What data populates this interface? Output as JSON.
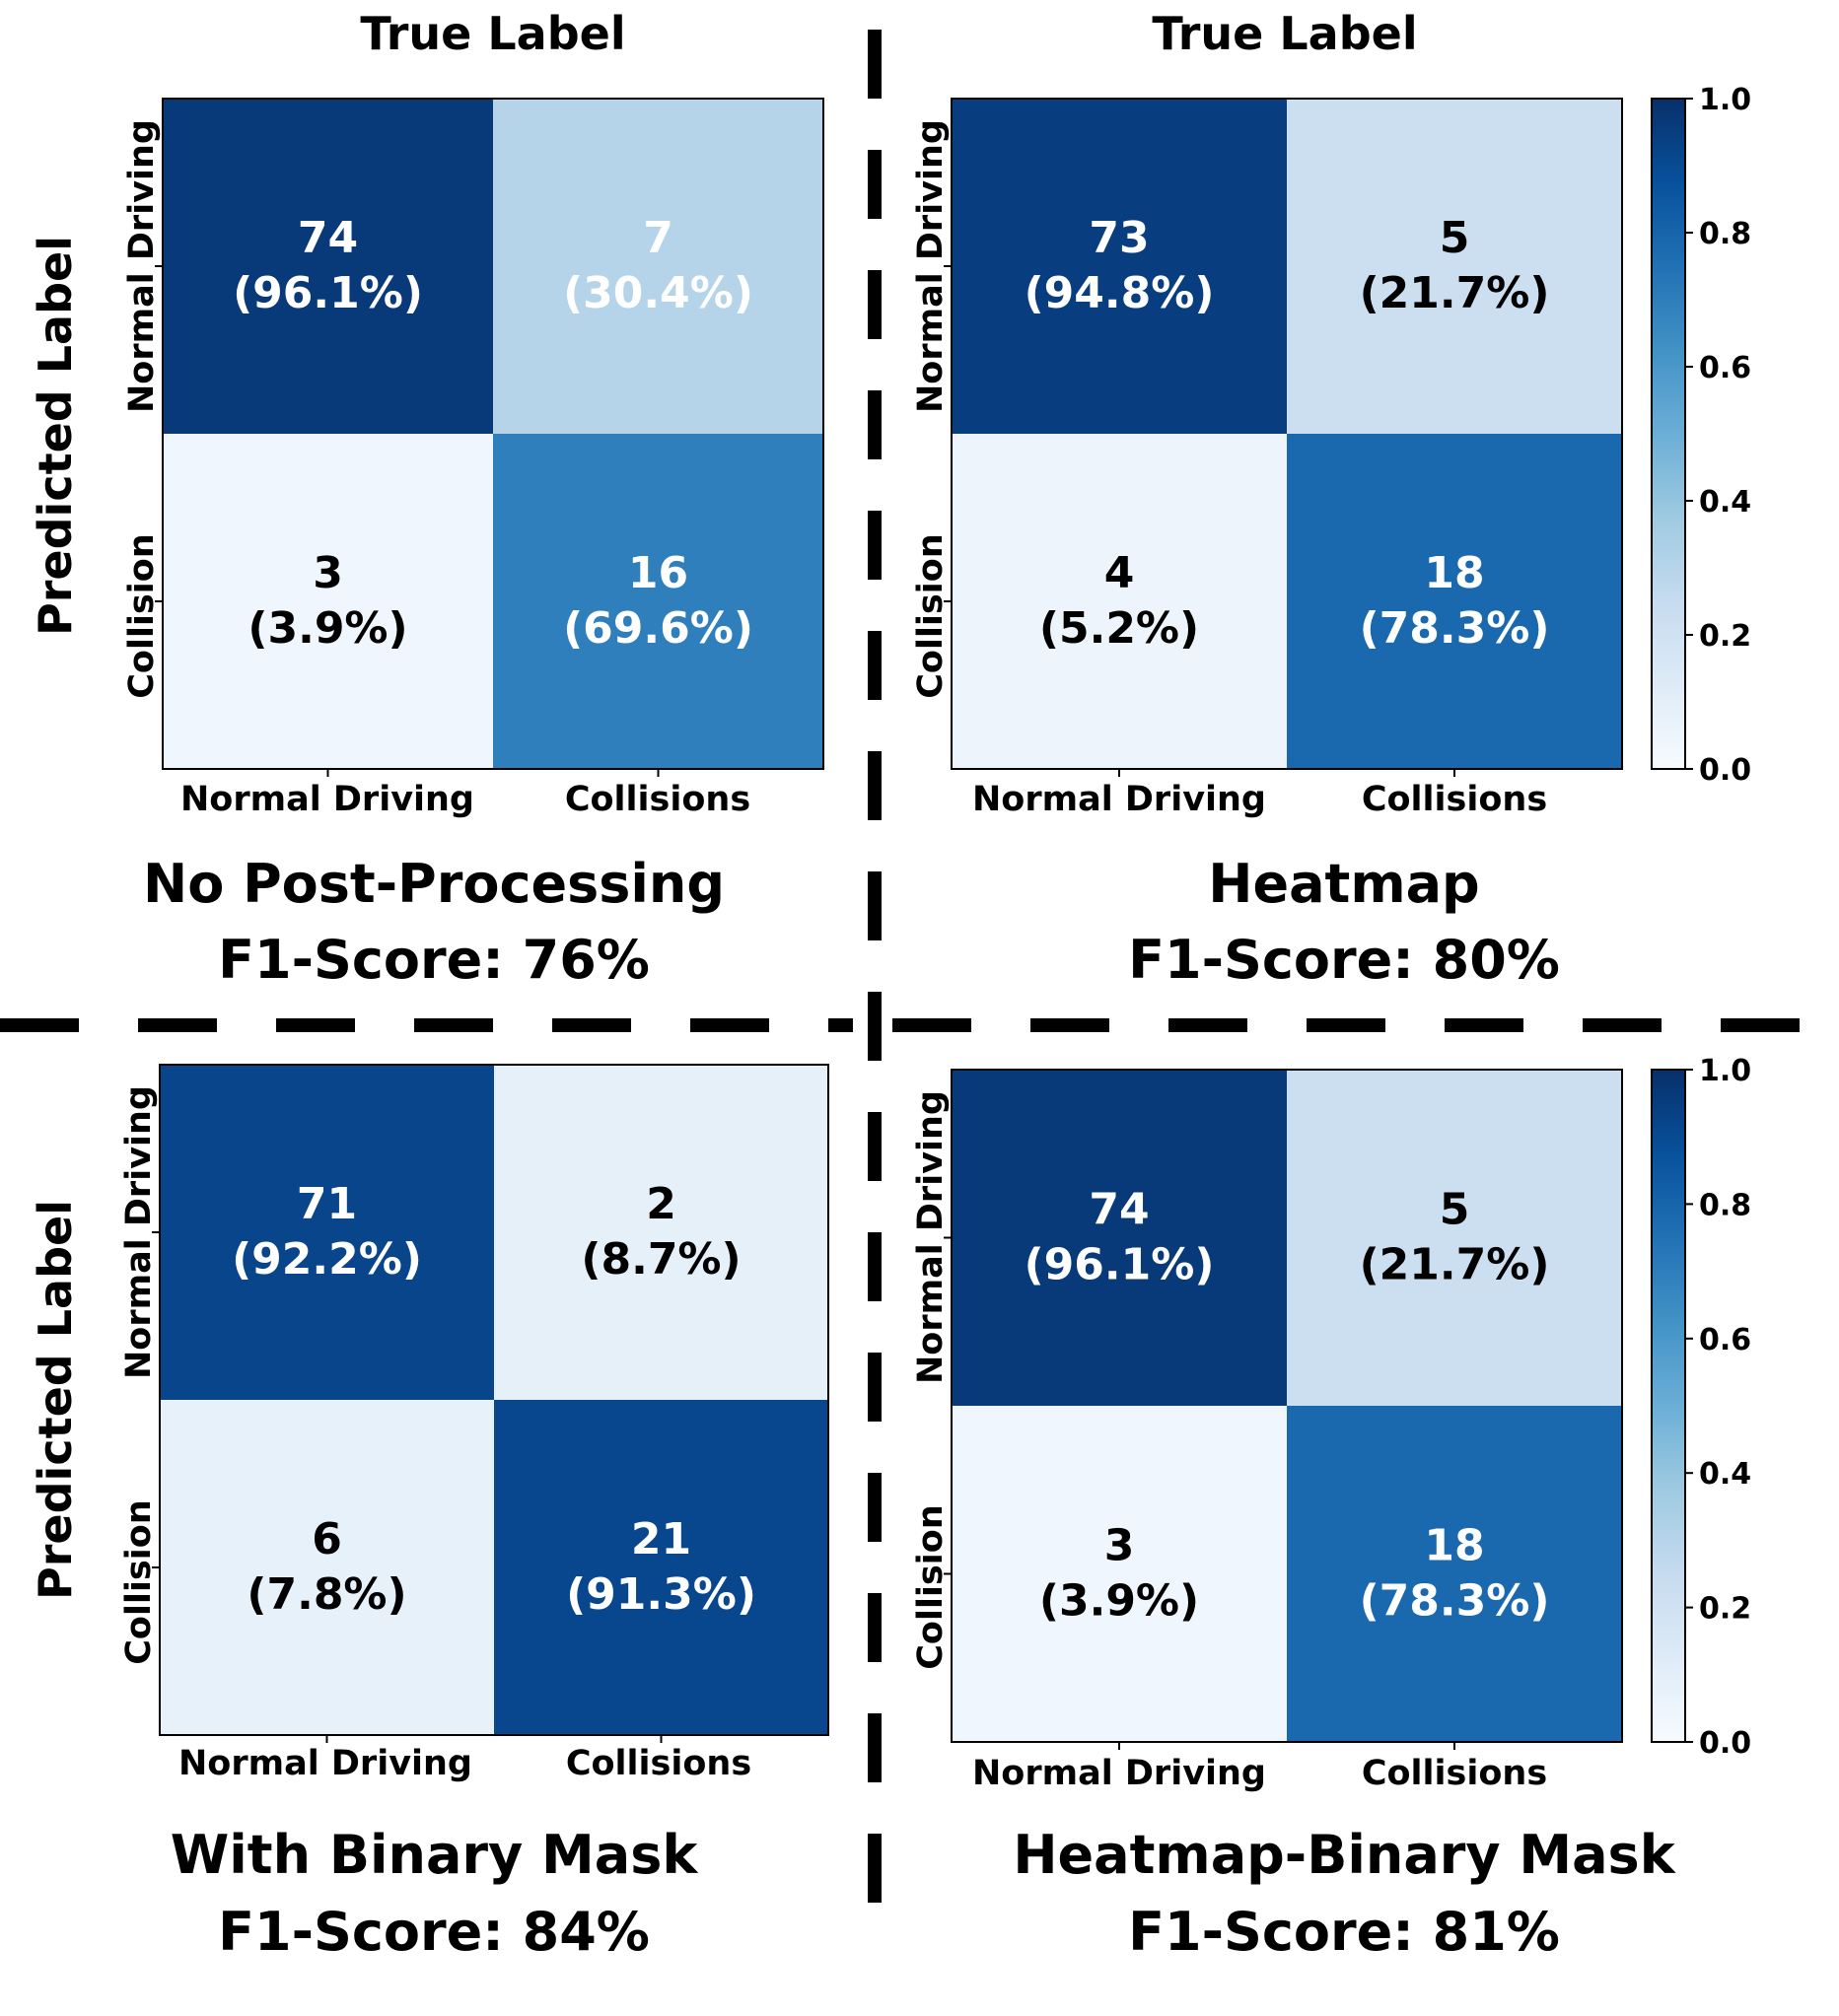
{
  "chart_data": [
    {
      "type": "heatmap",
      "title": "No Post-Processing",
      "subtitle": "F1-Score: 76%",
      "xlabel": "True Label",
      "ylabel": "Predicted Label",
      "x_categories": [
        "Normal Driving",
        "Collisions"
      ],
      "y_categories": [
        "Normal Driving",
        "Collision"
      ],
      "cells": [
        [
          {
            "count": "74",
            "pct": "(96.1%)",
            "value": 0.961
          },
          {
            "count": "7",
            "pct": "(30.4%)",
            "value": 0.304
          }
        ],
        [
          {
            "count": "3",
            "pct": "(3.9%)",
            "value": 0.039
          },
          {
            "count": "16",
            "pct": "(69.6%)",
            "value": 0.696
          }
        ]
      ],
      "colorbar": false
    },
    {
      "type": "heatmap",
      "title": "Heatmap",
      "subtitle": "F1-Score: 80%",
      "xlabel": "True Label",
      "ylabel": "",
      "x_categories": [
        "Normal Driving",
        "Collisions"
      ],
      "y_categories": [
        "Normal Driving",
        "Collision"
      ],
      "cells": [
        [
          {
            "count": "73",
            "pct": "(94.8%)",
            "value": 0.948
          },
          {
            "count": "5",
            "pct": "(21.7%)",
            "value": 0.217
          }
        ],
        [
          {
            "count": "4",
            "pct": "(5.2%)",
            "value": 0.052
          },
          {
            "count": "18",
            "pct": "(78.3%)",
            "value": 0.783
          }
        ]
      ],
      "colorbar": true,
      "colorbar_range": [
        0,
        1
      ],
      "colorbar_ticks": [
        "0.0",
        "0.2",
        "0.4",
        "0.6",
        "0.8",
        "1.0"
      ]
    },
    {
      "type": "heatmap",
      "title": "With Binary Mask",
      "subtitle": "F1-Score: 84%",
      "xlabel": "",
      "ylabel": "Predicted Label",
      "x_categories": [
        "Normal Driving",
        "Collisions"
      ],
      "y_categories": [
        "Normal Driving",
        "Collision"
      ],
      "cells": [
        [
          {
            "count": "71",
            "pct": "(92.2%)",
            "value": 0.922
          },
          {
            "count": "2",
            "pct": "(8.7%)",
            "value": 0.087
          }
        ],
        [
          {
            "count": "6",
            "pct": "(7.8%)",
            "value": 0.078
          },
          {
            "count": "21",
            "pct": "(91.3%)",
            "value": 0.913
          }
        ]
      ],
      "colorbar": false
    },
    {
      "type": "heatmap",
      "title": "Heatmap-Binary Mask",
      "subtitle": "F1-Score: 81%",
      "xlabel": "",
      "ylabel": "",
      "x_categories": [
        "Normal Driving",
        "Collisions"
      ],
      "y_categories": [
        "Normal Driving",
        "Collision"
      ],
      "cells": [
        [
          {
            "count": "74",
            "pct": "(96.1%)",
            "value": 0.961
          },
          {
            "count": "5",
            "pct": "(21.7%)",
            "value": 0.217
          }
        ],
        [
          {
            "count": "3",
            "pct": "(3.9%)",
            "value": 0.039
          },
          {
            "count": "18",
            "pct": "(78.3%)",
            "value": 0.783
          }
        ]
      ],
      "colorbar": true,
      "colorbar_range": [
        0,
        1
      ],
      "colorbar_ticks": [
        "0.0",
        "0.2",
        "0.4",
        "0.6",
        "0.8",
        "1.0"
      ]
    }
  ],
  "colors": {
    "blues_low": "#f7fbff",
    "blues_high": "#08306b",
    "divider": "#000000"
  }
}
